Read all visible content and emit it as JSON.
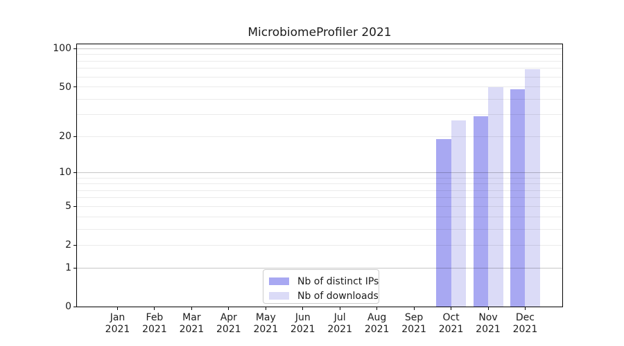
{
  "title": "MicrobiomeProfiler 2021",
  "chart_data": {
    "type": "bar",
    "title": "MicrobiomeProfiler 2021",
    "categories": [
      "Jan 2021",
      "Feb 2021",
      "Mar 2021",
      "Apr 2021",
      "May 2021",
      "Jun 2021",
      "Jul 2021",
      "Aug 2021",
      "Sep 2021",
      "Oct 2021",
      "Nov 2021",
      "Dec 2021"
    ],
    "series": [
      {
        "name": "Nb of distinct IPs",
        "color": "#a8a8f2",
        "values": [
          0,
          0,
          0,
          0,
          0,
          0,
          0,
          0,
          0,
          19,
          29,
          48
        ]
      },
      {
        "name": "Nb of downloads",
        "color": "#dbdbf7",
        "values": [
          0,
          0,
          0,
          0,
          0,
          0,
          0,
          0,
          0,
          27,
          50,
          69
        ]
      }
    ],
    "yscale": "log1p",
    "ylim": [
      0,
      110
    ],
    "ytick_values": [
      0,
      1,
      2,
      5,
      10,
      20,
      50,
      100
    ],
    "ytick_labels": [
      "0",
      "1",
      "2",
      "5",
      "10",
      "20",
      "50",
      "100"
    ],
    "grid_major_values": [
      1,
      10,
      100
    ],
    "grid_minor_values": [
      2,
      3,
      4,
      5,
      6,
      7,
      8,
      9,
      20,
      30,
      40,
      50,
      60,
      70,
      80,
      90
    ],
    "legend_position": "lower center",
    "xlabel": "",
    "ylabel": ""
  },
  "colors": {
    "background": "#ffffff",
    "bar_distinct_ips": "#a8a8f2",
    "bar_downloads": "#dbdbf7",
    "axis": "#000000",
    "grid_major": "#c6c6c6",
    "grid_minor": "#ececec",
    "legend_border": "#cccccc",
    "text": "#1b1b1b"
  }
}
